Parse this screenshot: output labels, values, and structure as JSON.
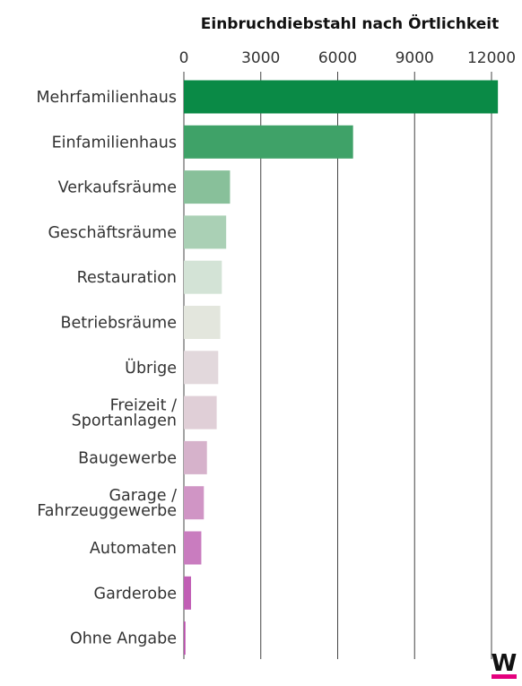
{
  "chart_data": {
    "type": "bar",
    "orientation": "horizontal",
    "title": "Einbruchdiebstahl nach Örtlichkeit",
    "xlabel": "",
    "ylabel": "",
    "xlim": [
      0,
      12000
    ],
    "x_ticks": [
      0,
      3000,
      6000,
      9000,
      12000
    ],
    "x_tick_labels": [
      "0",
      "3000",
      "6000",
      "9000",
      "12000"
    ],
    "grid": "vertical",
    "categories": [
      "Mehrfamilienhaus",
      "Einfamilienhaus",
      "Verkaufsräume",
      "Geschäftsräume",
      "Restauration",
      "Betriebsräume",
      "Übrige",
      "Freizeit / Sportanlagen",
      "Baugewerbe",
      "Garage / Fahrzeuggewerbe",
      "Automaten",
      "Garderobe",
      "Ohne Angabe"
    ],
    "category_lines": [
      [
        "Mehrfamilienhaus"
      ],
      [
        "Einfamilienhaus"
      ],
      [
        "Verkaufsräume"
      ],
      [
        "Geschäftsräume"
      ],
      [
        "Restauration"
      ],
      [
        "Betriebsräume"
      ],
      [
        "Übrige"
      ],
      [
        "Freizeit /",
        "Sportanlagen"
      ],
      [
        "Baugewerbe"
      ],
      [
        "Garage /",
        "Fahrzeuggewerbe"
      ],
      [
        "Automaten"
      ],
      [
        "Garderobe"
      ],
      [
        "Ohne Angabe"
      ]
    ],
    "values": [
      12250,
      6600,
      1800,
      1650,
      1480,
      1420,
      1340,
      1280,
      900,
      780,
      680,
      280,
      60
    ],
    "colors": [
      "#0a8a46",
      "#3fa268",
      "#88c09a",
      "#aad0b5",
      "#d3e3d6",
      "#e3e6dd",
      "#e2d8dc",
      "#e0cfd7",
      "#d6b2cb",
      "#d095c5",
      "#c97cbf",
      "#c15fb5",
      "#b94aab"
    ]
  },
  "logo": {
    "letter": "W",
    "accent_color": "#e5007e"
  }
}
